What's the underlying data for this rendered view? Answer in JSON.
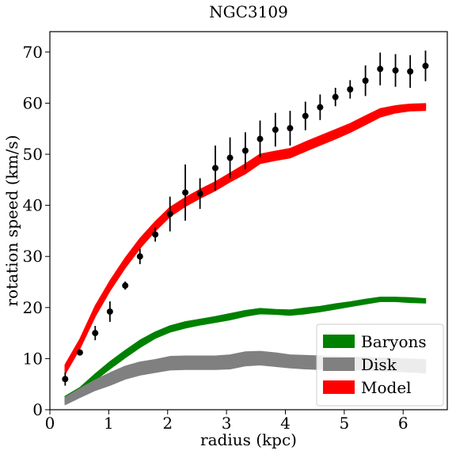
{
  "chart_data": {
    "type": "line",
    "title": "NGC3109",
    "xlabel": "radius (kpc)",
    "ylabel": "rotation speed (km/s)",
    "xlim": [
      0,
      6.75
    ],
    "ylim": [
      0,
      74
    ],
    "xticks": [
      0,
      1,
      2,
      3,
      4,
      5,
      6
    ],
    "yticks": [
      0,
      10,
      20,
      30,
      40,
      50,
      60,
      70
    ],
    "legend_position": "lower-right",
    "series": [
      {
        "name": "Baryons",
        "kind": "band",
        "color": "#008000",
        "x": [
          0.26,
          0.51,
          0.77,
          1.02,
          1.28,
          1.53,
          1.79,
          2.04,
          2.3,
          2.55,
          2.81,
          3.06,
          3.32,
          3.57,
          3.83,
          4.08,
          4.34,
          4.59,
          4.85,
          5.1,
          5.36,
          5.61,
          5.87,
          6.12,
          6.38
        ],
        "lower": [
          1.5,
          3.0,
          5.8,
          8.0,
          10.2,
          12.2,
          14.0,
          15.2,
          16.0,
          16.6,
          17.1,
          17.6,
          18.3,
          18.8,
          18.7,
          18.5,
          18.8,
          19.2,
          19.7,
          20.2,
          20.7,
          21.2,
          21.2,
          21.0,
          20.9
        ],
        "upper": [
          2.6,
          4.3,
          7.0,
          9.4,
          11.6,
          13.6,
          15.2,
          16.4,
          17.2,
          17.7,
          18.2,
          18.8,
          19.4,
          19.8,
          19.6,
          19.5,
          19.9,
          20.2,
          20.7,
          21.1,
          21.6,
          22.0,
          22.0,
          21.9,
          21.7
        ]
      },
      {
        "name": "Disk",
        "kind": "band",
        "color": "#808080",
        "x": [
          0.26,
          0.51,
          0.77,
          1.02,
          1.28,
          1.53,
          1.79,
          2.04,
          2.3,
          2.55,
          2.81,
          3.06,
          3.32,
          3.57,
          3.83,
          4.08,
          4.34,
          4.59,
          4.85,
          5.1,
          5.36,
          5.61,
          5.87,
          6.12,
          6.38
        ],
        "lower": [
          1.0,
          2.4,
          3.8,
          4.8,
          6.0,
          6.8,
          7.3,
          7.8,
          7.9,
          7.9,
          7.9,
          8.0,
          8.6,
          8.8,
          8.5,
          8.2,
          8.0,
          7.9,
          7.8,
          7.8,
          7.8,
          7.6,
          7.5,
          7.4,
          7.2
        ],
        "upper": [
          2.4,
          4.1,
          5.8,
          7.2,
          8.5,
          9.3,
          9.8,
          10.4,
          10.5,
          10.5,
          10.5,
          10.7,
          11.3,
          11.4,
          11.1,
          10.7,
          10.6,
          10.5,
          10.4,
          10.3,
          10.2,
          10.1,
          10.0,
          9.9,
          9.8
        ]
      },
      {
        "name": "Model",
        "kind": "band",
        "color": "#ff0000",
        "x": [
          0.26,
          0.51,
          0.77,
          1.02,
          1.28,
          1.53,
          1.79,
          2.04,
          2.3,
          2.55,
          2.81,
          3.06,
          3.32,
          3.57,
          3.83,
          4.08,
          4.34,
          4.59,
          4.85,
          5.1,
          5.36,
          5.61,
          5.87,
          6.12,
          6.38
        ],
        "lower": [
          7.0,
          12.0,
          18.3,
          23.3,
          27.8,
          31.6,
          35.0,
          37.8,
          39.8,
          41.4,
          42.9,
          44.6,
          46.2,
          48.2,
          48.8,
          49.3,
          50.6,
          51.8,
          53.0,
          54.3,
          55.8,
          57.3,
          58.1,
          58.5,
          58.6
        ],
        "upper": [
          8.8,
          13.8,
          20.3,
          25.2,
          29.7,
          33.5,
          36.8,
          39.6,
          41.5,
          43.1,
          44.6,
          46.3,
          48.1,
          50.0,
          50.6,
          51.1,
          52.4,
          53.6,
          54.8,
          56.0,
          57.5,
          58.9,
          59.5,
          59.8,
          59.9
        ]
      },
      {
        "kind": "errorbar",
        "color": "#000000",
        "x": [
          0.26,
          0.51,
          0.77,
          1.02,
          1.28,
          1.53,
          1.79,
          2.04,
          2.3,
          2.55,
          2.81,
          3.06,
          3.32,
          3.57,
          3.83,
          4.08,
          4.34,
          4.59,
          4.85,
          5.1,
          5.36,
          5.61,
          5.87,
          6.12,
          6.38
        ],
        "y": [
          6.0,
          11.2,
          15.0,
          19.2,
          24.3,
          30.0,
          34.3,
          38.3,
          42.5,
          42.3,
          47.3,
          49.3,
          50.7,
          53.0,
          54.8,
          55.1,
          57.5,
          59.2,
          61.2,
          62.7,
          64.4,
          66.7,
          66.4,
          66.2,
          67.3
        ],
        "yerr": [
          1.3,
          0.5,
          1.4,
          2.0,
          0.8,
          1.5,
          1.4,
          3.4,
          5.5,
          3.0,
          4.4,
          4.0,
          3.6,
          3.6,
          3.3,
          3.4,
          2.8,
          2.5,
          1.8,
          1.8,
          3.0,
          3.2,
          3.2,
          3.2,
          3.0
        ]
      }
    ]
  }
}
